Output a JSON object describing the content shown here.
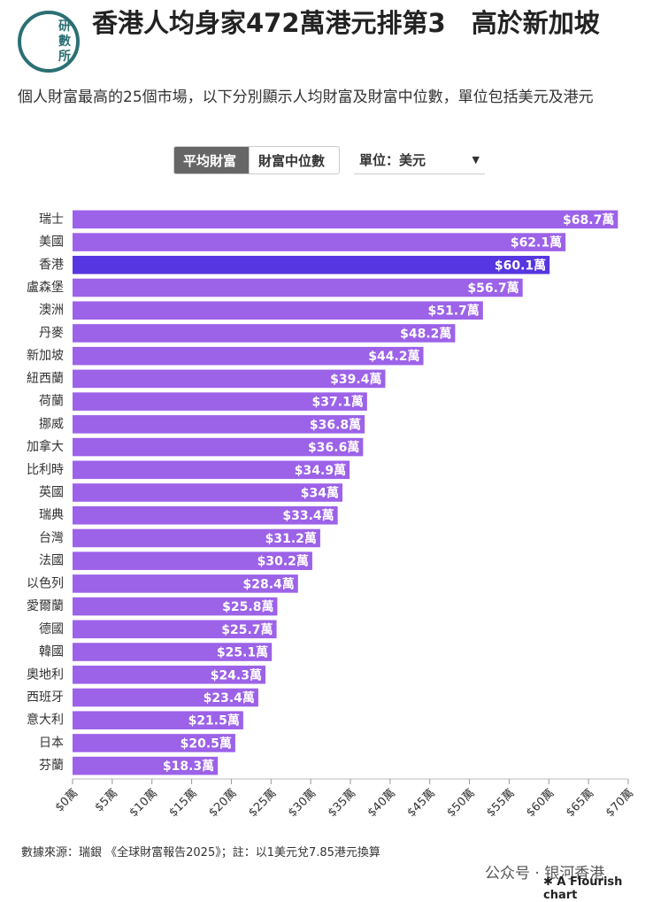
{
  "logo_text": [
    "研",
    "數",
    "所"
  ],
  "title": "香港人均身家472萬港元排第3　高於新加坡",
  "subtitle": "個人財富最高的25個市場，以下分別顯示人均財富及財富中位數，單位包括美元及港元",
  "controls": {
    "tabs": [
      "平均財富",
      "財富中位數"
    ],
    "dropdown": "單位：美元"
  },
  "chart_data": {
    "type": "bar",
    "orientation": "horizontal",
    "categories": [
      "瑞士",
      "美國",
      "香港",
      "盧森堡",
      "澳洲",
      "丹麥",
      "新加坡",
      "紐西蘭",
      "荷蘭",
      "挪威",
      "加拿大",
      "比利時",
      "英國",
      "瑞典",
      "台灣",
      "法國",
      "以色列",
      "愛爾蘭",
      "德國",
      "韓國",
      "奧地利",
      "西班牙",
      "意大利",
      "日本",
      "芬蘭"
    ],
    "values": [
      68.7,
      62.1,
      60.1,
      56.7,
      51.7,
      48.2,
      44.2,
      39.4,
      37.1,
      36.8,
      36.6,
      34.9,
      34,
      33.4,
      31.2,
      30.2,
      28.4,
      25.8,
      25.7,
      25.1,
      24.3,
      23.4,
      21.5,
      20.5,
      18.3
    ],
    "value_labels": [
      "$68.7萬",
      "$62.1萬",
      "$60.1萬",
      "$56.7萬",
      "$51.7萬",
      "$48.2萬",
      "$44.2萬",
      "$39.4萬",
      "$37.1萬",
      "$36.8萬",
      "$36.6萬",
      "$34.9萬",
      "$34萬",
      "$33.4萬",
      "$31.2萬",
      "$30.2萬",
      "$28.4萬",
      "$25.8萬",
      "$25.7萬",
      "$25.1萬",
      "$24.3萬",
      "$23.4萬",
      "$21.5萬",
      "$20.5萬",
      "$18.3萬"
    ],
    "colors": [
      "#9c62e8",
      "#9c62e8",
      "#5636e0",
      "#9c62e8",
      "#9c62e8",
      "#9c62e8",
      "#9c62e8",
      "#9c62e8",
      "#9c62e8",
      "#9c62e8",
      "#9c62e8",
      "#9c62e8",
      "#9c62e8",
      "#9c62e8",
      "#9c62e8",
      "#9c62e8",
      "#9c62e8",
      "#9c62e8",
      "#9c62e8",
      "#9c62e8",
      "#9c62e8",
      "#9c62e8",
      "#9c62e8",
      "#9c62e8",
      "#9c62e8"
    ],
    "xlim": [
      0,
      70
    ],
    "xticks": [
      {
        "value": 0,
        "label": "$0萬"
      },
      {
        "value": 5,
        "label": "$5萬"
      },
      {
        "value": 10,
        "label": "$10萬"
      },
      {
        "value": 15,
        "label": "$15萬"
      },
      {
        "value": 20,
        "label": "$20萬"
      },
      {
        "value": 25,
        "label": "$25萬"
      },
      {
        "value": 30,
        "label": "$30萬"
      },
      {
        "value": 35,
        "label": "$35萬"
      },
      {
        "value": 40,
        "label": "$40萬"
      },
      {
        "value": 45,
        "label": "$45萬"
      },
      {
        "value": 50,
        "label": "$50萬"
      },
      {
        "value": 55,
        "label": "$55萬"
      },
      {
        "value": 60,
        "label": "$60萬"
      },
      {
        "value": 65,
        "label": "$65萬"
      },
      {
        "value": 70,
        "label": "$70萬"
      }
    ]
  },
  "source": "數據來源：瑞銀 《全球財富報告2025》；註：以1美元兌7.85港元換算",
  "watermark": "公众号 · 银河香港",
  "credit": "A Flourish chart"
}
